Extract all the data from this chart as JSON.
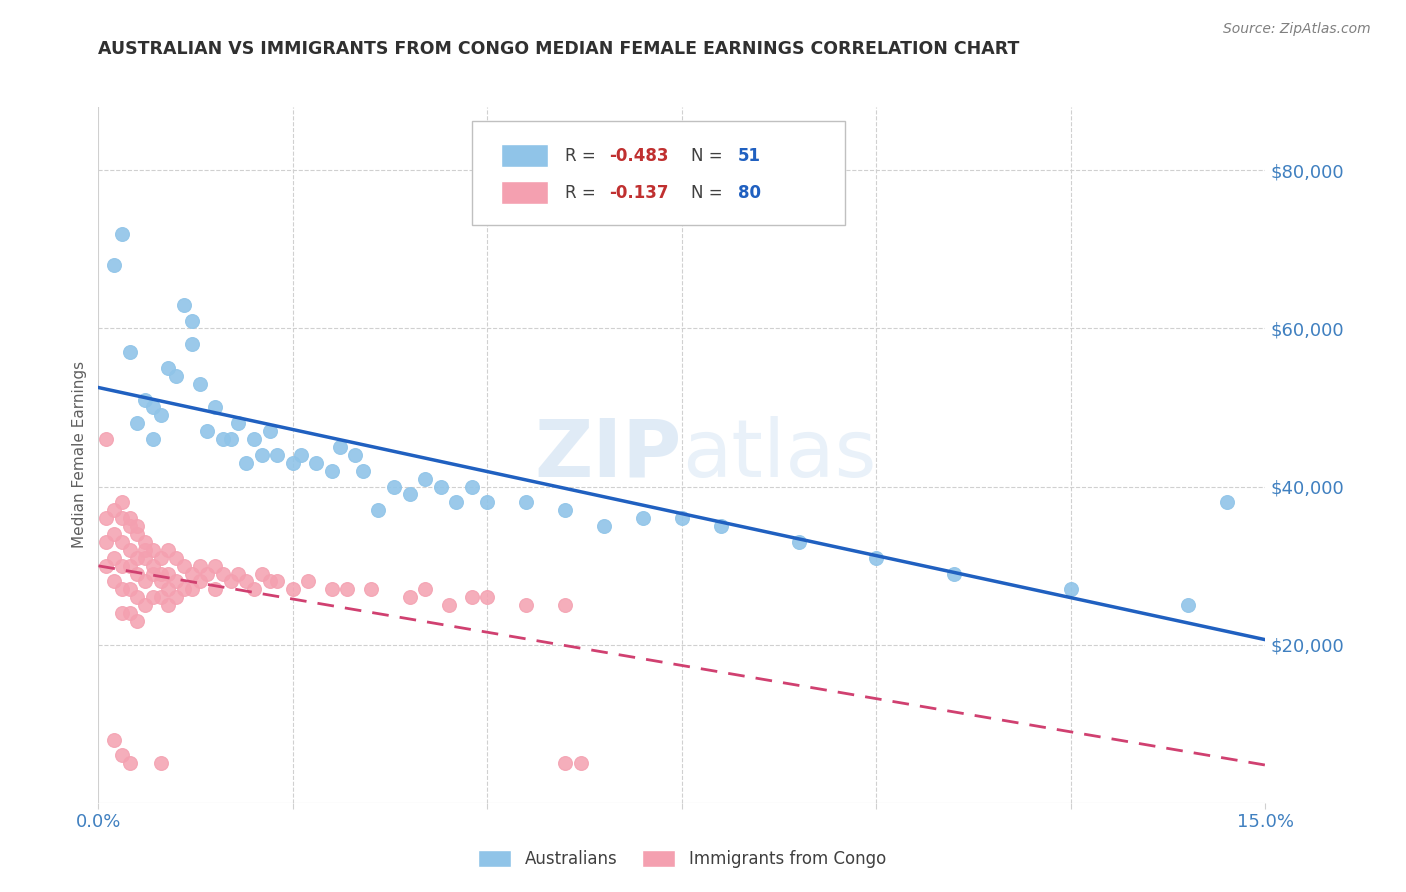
{
  "title": "AUSTRALIAN VS IMMIGRANTS FROM CONGO MEDIAN FEMALE EARNINGS CORRELATION CHART",
  "source": "Source: ZipAtlas.com",
  "ylabel": "Median Female Earnings",
  "y_tick_labels": [
    "$20,000",
    "$40,000",
    "$60,000",
    "$80,000"
  ],
  "y_tick_values": [
    20000,
    40000,
    60000,
    80000
  ],
  "y_min": 0,
  "y_max": 88000,
  "x_min": 0.0,
  "x_max": 0.15,
  "watermark_zip": "ZIP",
  "watermark_atlas": "atlas",
  "background_color": "#ffffff",
  "blue_color": "#90c4e8",
  "pink_color": "#f4a0b0",
  "trend_blue": "#2060c0",
  "trend_pink": "#d04070",
  "grid_color": "#d0d0d0",
  "axis_label_color": "#4080c0",
  "title_color": "#303030",
  "source_color": "#808080",
  "ylabel_color": "#606060",
  "australian_x": [
    0.002,
    0.003,
    0.004,
    0.005,
    0.006,
    0.007,
    0.007,
    0.008,
    0.009,
    0.01,
    0.011,
    0.012,
    0.012,
    0.013,
    0.014,
    0.015,
    0.016,
    0.017,
    0.018,
    0.019,
    0.02,
    0.021,
    0.022,
    0.023,
    0.025,
    0.026,
    0.028,
    0.03,
    0.031,
    0.033,
    0.034,
    0.036,
    0.038,
    0.04,
    0.042,
    0.044,
    0.046,
    0.048,
    0.05,
    0.055,
    0.06,
    0.065,
    0.07,
    0.075,
    0.08,
    0.09,
    0.1,
    0.11,
    0.125,
    0.14,
    0.145
  ],
  "australian_y": [
    68000,
    72000,
    57000,
    48000,
    51000,
    50000,
    46000,
    49000,
    55000,
    54000,
    63000,
    61000,
    58000,
    53000,
    47000,
    50000,
    46000,
    46000,
    48000,
    43000,
    46000,
    44000,
    47000,
    44000,
    43000,
    44000,
    43000,
    42000,
    45000,
    44000,
    42000,
    37000,
    40000,
    39000,
    41000,
    40000,
    38000,
    40000,
    38000,
    38000,
    37000,
    35000,
    36000,
    36000,
    35000,
    33000,
    31000,
    29000,
    27000,
    25000,
    38000
  ],
  "congo_x": [
    0.001,
    0.001,
    0.001,
    0.002,
    0.002,
    0.002,
    0.002,
    0.003,
    0.003,
    0.003,
    0.003,
    0.003,
    0.004,
    0.004,
    0.004,
    0.004,
    0.004,
    0.005,
    0.005,
    0.005,
    0.005,
    0.005,
    0.006,
    0.006,
    0.006,
    0.006,
    0.007,
    0.007,
    0.007,
    0.008,
    0.008,
    0.008,
    0.009,
    0.009,
    0.009,
    0.01,
    0.01,
    0.01,
    0.011,
    0.011,
    0.012,
    0.012,
    0.013,
    0.013,
    0.014,
    0.015,
    0.015,
    0.016,
    0.017,
    0.018,
    0.019,
    0.02,
    0.021,
    0.022,
    0.023,
    0.025,
    0.027,
    0.03,
    0.032,
    0.035,
    0.04,
    0.042,
    0.045,
    0.048,
    0.05,
    0.055,
    0.06,
    0.003,
    0.004,
    0.005,
    0.006,
    0.007,
    0.008,
    0.009,
    0.002,
    0.003,
    0.004,
    0.008,
    0.06,
    0.062,
    0.001
  ],
  "congo_y": [
    33000,
    36000,
    30000,
    37000,
    34000,
    31000,
    28000,
    36000,
    33000,
    30000,
    27000,
    24000,
    35000,
    32000,
    30000,
    27000,
    24000,
    34000,
    31000,
    29000,
    26000,
    23000,
    33000,
    31000,
    28000,
    25000,
    32000,
    29000,
    26000,
    31000,
    29000,
    26000,
    32000,
    29000,
    27000,
    31000,
    28000,
    26000,
    30000,
    27000,
    29000,
    27000,
    30000,
    28000,
    29000,
    30000,
    27000,
    29000,
    28000,
    29000,
    28000,
    27000,
    29000,
    28000,
    28000,
    27000,
    28000,
    27000,
    27000,
    27000,
    26000,
    27000,
    25000,
    26000,
    26000,
    25000,
    25000,
    38000,
    36000,
    35000,
    32000,
    30000,
    28000,
    25000,
    8000,
    6000,
    5000,
    5000,
    5000,
    5000,
    46000
  ]
}
